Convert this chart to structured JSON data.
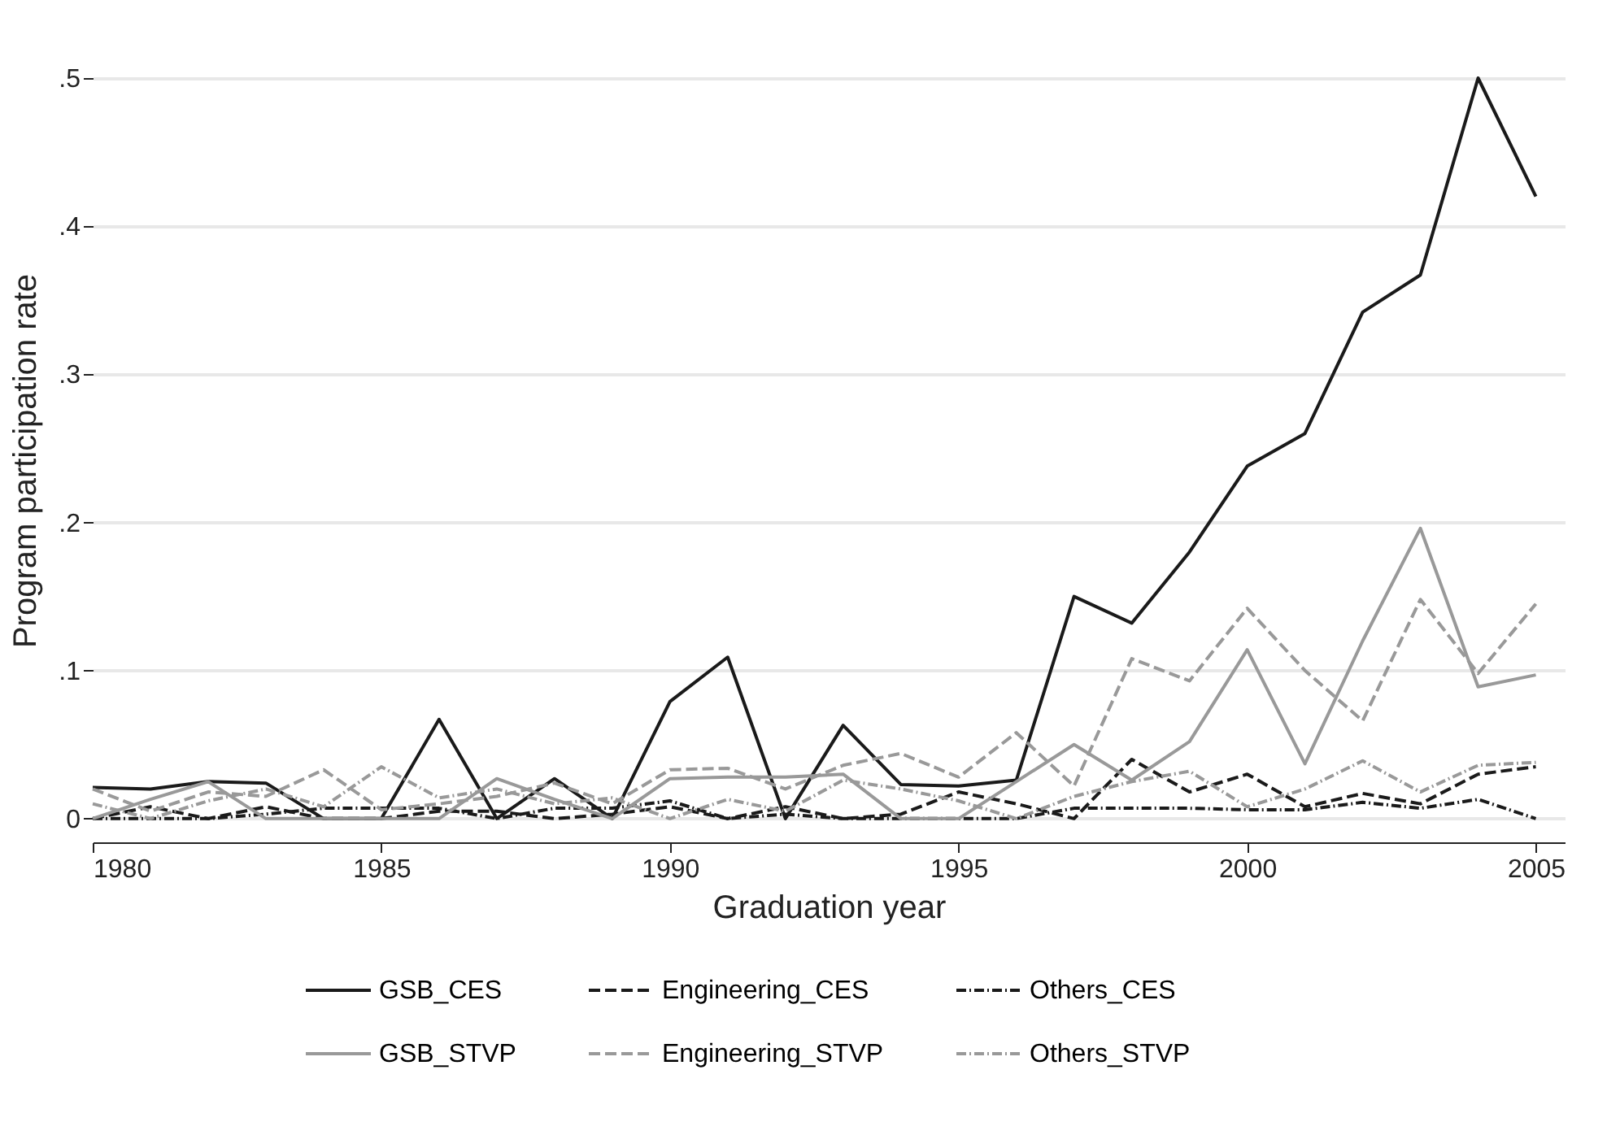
{
  "chart_data": {
    "type": "line",
    "xlabel": "Graduation year",
    "ylabel": "Program participation rate",
    "x": [
      1980,
      1981,
      1982,
      1983,
      1984,
      1985,
      1986,
      1987,
      1988,
      1989,
      1990,
      1991,
      1992,
      1993,
      1994,
      1995,
      1996,
      1997,
      1998,
      1999,
      2000,
      2001,
      2002,
      2003,
      2004,
      2005
    ],
    "series": [
      {
        "name": "GSB_CES",
        "color": "#1a1a1a",
        "line_style": "solid",
        "values": [
          0.021,
          0.02,
          0.025,
          0.024,
          0,
          0,
          0.067,
          0,
          0.027,
          0,
          0.079,
          0.109,
          0,
          0.063,
          0.023,
          0.022,
          0.026,
          0.15,
          0.132,
          0.18,
          0.238,
          0.26,
          0.342,
          0.367,
          0.5,
          0.42
        ]
      },
      {
        "name": "Engineering_CES",
        "color": "#1a1a1a",
        "line_style": "dashed",
        "values": [
          0,
          0.008,
          0,
          0.008,
          0,
          0,
          0.005,
          0.005,
          0,
          0.003,
          0.008,
          0,
          0.008,
          0,
          0.003,
          0.018,
          0.01,
          0,
          0.04,
          0.018,
          0.03,
          0.008,
          0.017,
          0.01,
          0.03,
          0.035
        ]
      },
      {
        "name": "Others_CES",
        "color": "#1a1a1a",
        "line_style": "dotted",
        "values": [
          0,
          0,
          0,
          0.003,
          0.007,
          0.007,
          0.007,
          0,
          0.007,
          0.007,
          0.012,
          0,
          0.003,
          0,
          0,
          0,
          0,
          0.007,
          0.007,
          0.007,
          0.006,
          0.006,
          0.011,
          0.007,
          0.013,
          0
        ]
      },
      {
        "name": "GSB_STVP",
        "color": "#999999",
        "line_style": "solid",
        "values": [
          0,
          0.013,
          0.025,
          0,
          0,
          0,
          0,
          0.027,
          0.013,
          0,
          0.027,
          0.028,
          0.028,
          0.03,
          0,
          0,
          0.025,
          0.05,
          0.026,
          0.052,
          0.114,
          0.037,
          0.12,
          0.196,
          0.089,
          0.097
        ]
      },
      {
        "name": "Engineering_STVP",
        "color": "#999999",
        "line_style": "dashed",
        "values": [
          0.02,
          0.005,
          0.018,
          0.015,
          0.033,
          0.006,
          0.01,
          0.015,
          0.024,
          0.01,
          0.033,
          0.034,
          0.02,
          0.036,
          0.044,
          0.028,
          0.058,
          0.022,
          0.108,
          0.093,
          0.142,
          0.1,
          0.066,
          0.148,
          0.098,
          0.145
        ]
      },
      {
        "name": "Others_STVP",
        "color": "#999999",
        "line_style": "dotted",
        "values": [
          0.01,
          0,
          0.012,
          0.02,
          0.008,
          0.035,
          0.014,
          0.02,
          0.01,
          0.014,
          0,
          0.013,
          0.005,
          0.026,
          0.02,
          0.012,
          0,
          0.015,
          0.025,
          0.032,
          0.008,
          0.02,
          0.039,
          0.018,
          0.036,
          0.038
        ]
      }
    ],
    "xlim": [
      1980,
      2005.5
    ],
    "xticks": [
      1980,
      1985,
      1990,
      1995,
      2000,
      2005
    ],
    "ylim": [
      -0.016,
      0.5
    ],
    "yticks": [
      0,
      {
        "value": 0.1,
        "label": ".1"
      },
      {
        "value": 0.2,
        "label": ".2"
      },
      {
        "value": 0.3,
        "label": ".3"
      },
      {
        "value": 0.4,
        "label": ".4"
      },
      {
        "value": 0.5,
        "label": ".5"
      }
    ],
    "grid": "y",
    "legend": "bottom",
    "marker": "none"
  }
}
